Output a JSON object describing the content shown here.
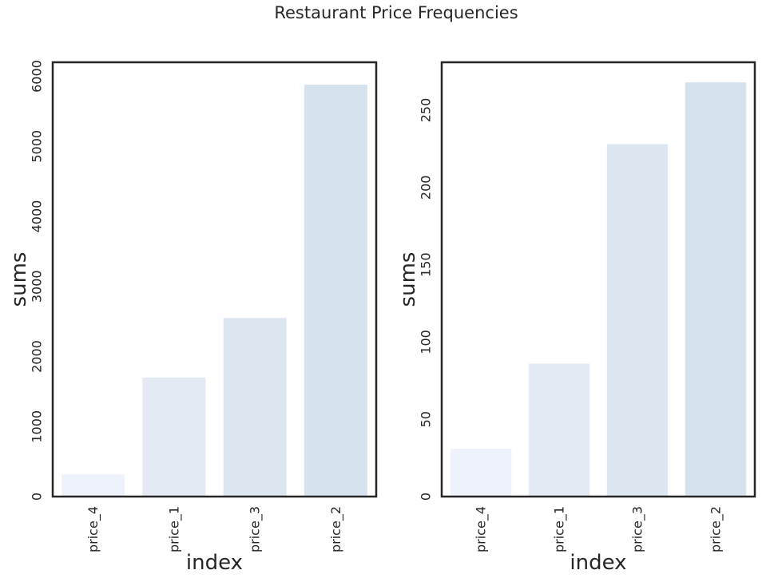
{
  "figure": {
    "title": "Restaurant Price Frequencies"
  },
  "chart_data": [
    {
      "type": "bar",
      "categories": [
        "price_4",
        "price_1",
        "price_3",
        "price_2"
      ],
      "values": [
        320,
        1700,
        2550,
        5880
      ],
      "colors": [
        "#eef3fb",
        "#e3eaf4",
        "#dde7f2",
        "#d6e3ef"
      ],
      "xlabel": "index",
      "ylabel": "sums",
      "ylim": [
        0,
        6200
      ],
      "yticks": [
        0,
        1000,
        2000,
        3000,
        4000,
        5000,
        6000
      ],
      "grid": false
    },
    {
      "type": "bar",
      "categories": [
        "price_4",
        "price_1",
        "price_3",
        "price_2"
      ],
      "values": [
        31,
        86,
        228,
        268
      ],
      "colors": [
        "#eef3fb",
        "#e3eaf4",
        "#dde7f2",
        "#d6e3ef"
      ],
      "xlabel": "index",
      "ylabel": "sums",
      "ylim": [
        0,
        281
      ],
      "yticks": [
        0,
        50,
        100,
        150,
        200,
        250
      ],
      "grid": false
    }
  ]
}
